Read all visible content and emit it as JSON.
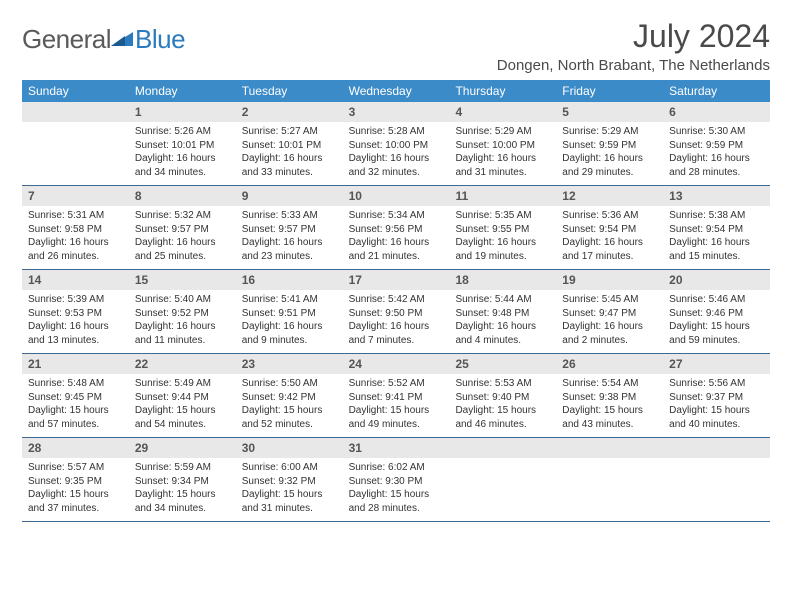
{
  "logo": {
    "general": "General",
    "blue": "Blue"
  },
  "title": "July 2024",
  "location": "Dongen, North Brabant, The Netherlands",
  "colors": {
    "header_bg": "#3b8bc9",
    "header_text": "#ffffff",
    "daynum_bg": "#e8e8e8",
    "row_divider": "#3b6b94",
    "logo_blue": "#2b7bbf",
    "logo_gray": "#5a5a5a"
  },
  "days_of_week": [
    "Sunday",
    "Monday",
    "Tuesday",
    "Wednesday",
    "Thursday",
    "Friday",
    "Saturday"
  ],
  "weeks": [
    [
      {
        "n": "",
        "sr": "",
        "ss": "",
        "dl": ""
      },
      {
        "n": "1",
        "sr": "Sunrise: 5:26 AM",
        "ss": "Sunset: 10:01 PM",
        "dl": "Daylight: 16 hours and 34 minutes."
      },
      {
        "n": "2",
        "sr": "Sunrise: 5:27 AM",
        "ss": "Sunset: 10:01 PM",
        "dl": "Daylight: 16 hours and 33 minutes."
      },
      {
        "n": "3",
        "sr": "Sunrise: 5:28 AM",
        "ss": "Sunset: 10:00 PM",
        "dl": "Daylight: 16 hours and 32 minutes."
      },
      {
        "n": "4",
        "sr": "Sunrise: 5:29 AM",
        "ss": "Sunset: 10:00 PM",
        "dl": "Daylight: 16 hours and 31 minutes."
      },
      {
        "n": "5",
        "sr": "Sunrise: 5:29 AM",
        "ss": "Sunset: 9:59 PM",
        "dl": "Daylight: 16 hours and 29 minutes."
      },
      {
        "n": "6",
        "sr": "Sunrise: 5:30 AM",
        "ss": "Sunset: 9:59 PM",
        "dl": "Daylight: 16 hours and 28 minutes."
      }
    ],
    [
      {
        "n": "7",
        "sr": "Sunrise: 5:31 AM",
        "ss": "Sunset: 9:58 PM",
        "dl": "Daylight: 16 hours and 26 minutes."
      },
      {
        "n": "8",
        "sr": "Sunrise: 5:32 AM",
        "ss": "Sunset: 9:57 PM",
        "dl": "Daylight: 16 hours and 25 minutes."
      },
      {
        "n": "9",
        "sr": "Sunrise: 5:33 AM",
        "ss": "Sunset: 9:57 PM",
        "dl": "Daylight: 16 hours and 23 minutes."
      },
      {
        "n": "10",
        "sr": "Sunrise: 5:34 AM",
        "ss": "Sunset: 9:56 PM",
        "dl": "Daylight: 16 hours and 21 minutes."
      },
      {
        "n": "11",
        "sr": "Sunrise: 5:35 AM",
        "ss": "Sunset: 9:55 PM",
        "dl": "Daylight: 16 hours and 19 minutes."
      },
      {
        "n": "12",
        "sr": "Sunrise: 5:36 AM",
        "ss": "Sunset: 9:54 PM",
        "dl": "Daylight: 16 hours and 17 minutes."
      },
      {
        "n": "13",
        "sr": "Sunrise: 5:38 AM",
        "ss": "Sunset: 9:54 PM",
        "dl": "Daylight: 16 hours and 15 minutes."
      }
    ],
    [
      {
        "n": "14",
        "sr": "Sunrise: 5:39 AM",
        "ss": "Sunset: 9:53 PM",
        "dl": "Daylight: 16 hours and 13 minutes."
      },
      {
        "n": "15",
        "sr": "Sunrise: 5:40 AM",
        "ss": "Sunset: 9:52 PM",
        "dl": "Daylight: 16 hours and 11 minutes."
      },
      {
        "n": "16",
        "sr": "Sunrise: 5:41 AM",
        "ss": "Sunset: 9:51 PM",
        "dl": "Daylight: 16 hours and 9 minutes."
      },
      {
        "n": "17",
        "sr": "Sunrise: 5:42 AM",
        "ss": "Sunset: 9:50 PM",
        "dl": "Daylight: 16 hours and 7 minutes."
      },
      {
        "n": "18",
        "sr": "Sunrise: 5:44 AM",
        "ss": "Sunset: 9:48 PM",
        "dl": "Daylight: 16 hours and 4 minutes."
      },
      {
        "n": "19",
        "sr": "Sunrise: 5:45 AM",
        "ss": "Sunset: 9:47 PM",
        "dl": "Daylight: 16 hours and 2 minutes."
      },
      {
        "n": "20",
        "sr": "Sunrise: 5:46 AM",
        "ss": "Sunset: 9:46 PM",
        "dl": "Daylight: 15 hours and 59 minutes."
      }
    ],
    [
      {
        "n": "21",
        "sr": "Sunrise: 5:48 AM",
        "ss": "Sunset: 9:45 PM",
        "dl": "Daylight: 15 hours and 57 minutes."
      },
      {
        "n": "22",
        "sr": "Sunrise: 5:49 AM",
        "ss": "Sunset: 9:44 PM",
        "dl": "Daylight: 15 hours and 54 minutes."
      },
      {
        "n": "23",
        "sr": "Sunrise: 5:50 AM",
        "ss": "Sunset: 9:42 PM",
        "dl": "Daylight: 15 hours and 52 minutes."
      },
      {
        "n": "24",
        "sr": "Sunrise: 5:52 AM",
        "ss": "Sunset: 9:41 PM",
        "dl": "Daylight: 15 hours and 49 minutes."
      },
      {
        "n": "25",
        "sr": "Sunrise: 5:53 AM",
        "ss": "Sunset: 9:40 PM",
        "dl": "Daylight: 15 hours and 46 minutes."
      },
      {
        "n": "26",
        "sr": "Sunrise: 5:54 AM",
        "ss": "Sunset: 9:38 PM",
        "dl": "Daylight: 15 hours and 43 minutes."
      },
      {
        "n": "27",
        "sr": "Sunrise: 5:56 AM",
        "ss": "Sunset: 9:37 PM",
        "dl": "Daylight: 15 hours and 40 minutes."
      }
    ],
    [
      {
        "n": "28",
        "sr": "Sunrise: 5:57 AM",
        "ss": "Sunset: 9:35 PM",
        "dl": "Daylight: 15 hours and 37 minutes."
      },
      {
        "n": "29",
        "sr": "Sunrise: 5:59 AM",
        "ss": "Sunset: 9:34 PM",
        "dl": "Daylight: 15 hours and 34 minutes."
      },
      {
        "n": "30",
        "sr": "Sunrise: 6:00 AM",
        "ss": "Sunset: 9:32 PM",
        "dl": "Daylight: 15 hours and 31 minutes."
      },
      {
        "n": "31",
        "sr": "Sunrise: 6:02 AM",
        "ss": "Sunset: 9:30 PM",
        "dl": "Daylight: 15 hours and 28 minutes."
      },
      {
        "n": "",
        "sr": "",
        "ss": "",
        "dl": ""
      },
      {
        "n": "",
        "sr": "",
        "ss": "",
        "dl": ""
      },
      {
        "n": "",
        "sr": "",
        "ss": "",
        "dl": ""
      }
    ]
  ]
}
